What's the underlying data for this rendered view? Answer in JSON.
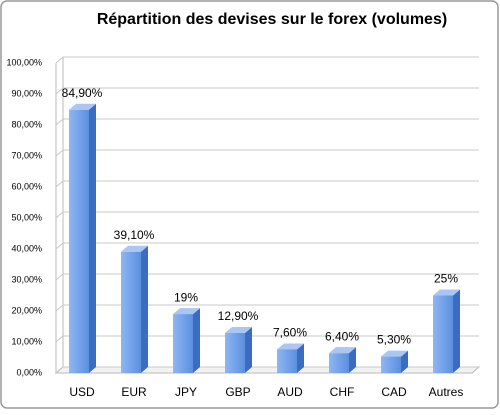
{
  "chart_data": {
    "type": "bar3d",
    "title": "Répartition des devises sur le forex (volumes)",
    "categories": [
      "USD",
      "EUR",
      "JPY",
      "GBP",
      "AUD",
      "CHF",
      "CAD",
      "Autres"
    ],
    "values": [
      84.9,
      39.1,
      19,
      12.9,
      7.6,
      6.4,
      5.3,
      25
    ],
    "value_labels": [
      "84,90%",
      "39,10%",
      "19%",
      "12,90%",
      "7,60%",
      "6,40%",
      "5,30%",
      "25%"
    ],
    "color": "#5b8fe0",
    "ylim": [
      0,
      100
    ],
    "yticks": [
      {
        "value": 0,
        "label": "0,00%"
      },
      {
        "value": 10,
        "label": "10,00%"
      },
      {
        "value": 20,
        "label": "20,00%"
      },
      {
        "value": 30,
        "label": "30,00%"
      },
      {
        "value": 40,
        "label": "40,00%"
      },
      {
        "value": 50,
        "label": "50,00%"
      },
      {
        "value": 60,
        "label": "60,00%"
      },
      {
        "value": 70,
        "label": "70,00%"
      },
      {
        "value": 80,
        "label": "80,00%"
      },
      {
        "value": 90,
        "label": "90,00%"
      },
      {
        "value": 100,
        "label": "100,00%"
      }
    ],
    "grid": true
  }
}
